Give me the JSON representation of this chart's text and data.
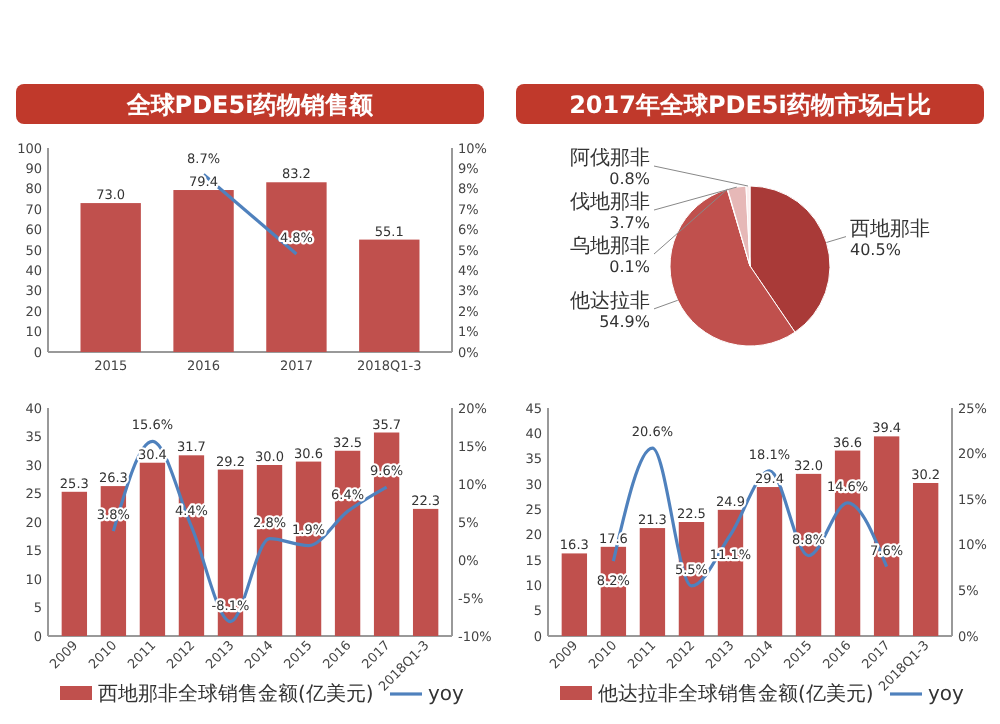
{
  "chart_data": [
    {
      "type": "bar",
      "title": "全球PDE5i药物销售额",
      "categories": [
        "2015",
        "2016",
        "2017",
        "2018Q1-3"
      ],
      "series": [
        {
          "type": "bar",
          "color": "#c0504d",
          "values": [
            73.0,
            79.4,
            83.2,
            55.1
          ],
          "value_labels": [
            "73.0",
            "79.4",
            "83.2",
            "55.1"
          ]
        },
        {
          "type": "line",
          "axis": "y2",
          "color": "#4f81bd",
          "values": [
            null,
            8.7,
            4.8,
            null
          ],
          "value_labels": [
            null,
            "8.7%",
            "4.8%",
            null
          ]
        }
      ],
      "ylim": [
        0,
        100
      ],
      "yticks": [
        0,
        10,
        20,
        30,
        40,
        50,
        60,
        70,
        80,
        90,
        100
      ],
      "y2lim": [
        0,
        10
      ],
      "y2ticks": [
        {
          "value": 0,
          "label": "0%"
        },
        {
          "value": 1,
          "label": "1%"
        },
        {
          "value": 2,
          "label": "2%"
        },
        {
          "value": 3,
          "label": "3%"
        },
        {
          "value": 4,
          "label": "4%"
        },
        {
          "value": 5,
          "label": "5%"
        },
        {
          "value": 6,
          "label": "6%"
        },
        {
          "value": 7,
          "label": "7%"
        },
        {
          "value": 8,
          "label": "8%"
        },
        {
          "value": 9,
          "label": "9%"
        },
        {
          "value": 10,
          "label": "10%"
        }
      ]
    },
    {
      "type": "pie",
      "title": "2017年全球PDE5i药物市场占比",
      "categories": [
        "西地那非",
        "他达拉非",
        "乌地那非",
        "伐地那非",
        "阿伐那非"
      ],
      "values": [
        40.5,
        54.9,
        0.1,
        3.7,
        0.8
      ],
      "value_labels": [
        "40.5%",
        "54.9%",
        "0.1%",
        "3.7%",
        "0.8%"
      ],
      "colors": [
        "#a93a38",
        "#c0504d",
        "#f2dcdb",
        "#e6b8b7",
        "#fbeeee"
      ]
    },
    {
      "type": "bar",
      "categories": [
        "2009",
        "2010",
        "2011",
        "2012",
        "2013",
        "2014",
        "2015",
        "2016",
        "2017",
        "2018Q1-3"
      ],
      "series": [
        {
          "name": "西地那非全球销售金额(亿美元)",
          "type": "bar",
          "color": "#c0504d",
          "values": [
            25.3,
            26.3,
            30.4,
            31.7,
            29.2,
            30.0,
            30.6,
            32.5,
            35.7,
            22.3
          ],
          "value_labels": [
            "25.3",
            "26.3",
            "30.4",
            "31.7",
            "29.2",
            "30.0",
            "30.6",
            "32.5",
            "35.7",
            "22.3"
          ]
        },
        {
          "name": "yoy",
          "type": "line",
          "axis": "y2",
          "color": "#4f81bd",
          "values": [
            null,
            3.8,
            15.6,
            4.4,
            -8.1,
            2.8,
            1.9,
            6.4,
            9.6,
            null
          ],
          "value_labels": [
            null,
            "3.8%",
            "15.6%",
            "4.4%",
            "-8.1%",
            "2.8%",
            "1.9%",
            "6.4%",
            "9.6%",
            null
          ]
        }
      ],
      "ylim": [
        0,
        40
      ],
      "yticks": [
        0,
        5,
        10,
        15,
        20,
        25,
        30,
        35,
        40
      ],
      "y2lim": [
        -10,
        20
      ],
      "y2ticks": [
        {
          "value": -10,
          "label": "-10%"
        },
        {
          "value": -5,
          "label": "-5%"
        },
        {
          "value": 0,
          "label": "0%"
        },
        {
          "value": 5,
          "label": "5%"
        },
        {
          "value": 10,
          "label": "10%"
        },
        {
          "value": 15,
          "label": "15%"
        },
        {
          "value": 20,
          "label": "20%"
        }
      ],
      "legend": "bottom"
    },
    {
      "type": "bar",
      "categories": [
        "2009",
        "2010",
        "2011",
        "2012",
        "2013",
        "2014",
        "2015",
        "2016",
        "2017",
        "2018Q1-3"
      ],
      "series": [
        {
          "name": "他达拉非全球销售金额(亿美元)",
          "type": "bar",
          "color": "#c0504d",
          "values": [
            16.3,
            17.6,
            21.3,
            22.5,
            24.9,
            29.4,
            32.0,
            36.6,
            39.4,
            30.2
          ],
          "value_labels": [
            "16.3",
            "17.6",
            "21.3",
            "22.5",
            "24.9",
            "29.4",
            "32.0",
            "36.6",
            "39.4",
            "30.2"
          ]
        },
        {
          "name": "yoy",
          "type": "line",
          "axis": "y2",
          "color": "#4f81bd",
          "values": [
            null,
            8.2,
            20.6,
            5.5,
            11.1,
            18.1,
            8.8,
            14.6,
            7.6,
            null
          ],
          "value_labels": [
            null,
            "8.2%",
            "20.6%",
            "5.5%",
            "11.1%",
            "18.1%",
            "8.8%",
            "14.6%",
            "7.6%",
            null
          ]
        }
      ],
      "ylim": [
        0,
        45
      ],
      "yticks": [
        0,
        5,
        10,
        15,
        20,
        25,
        30,
        35,
        40,
        45
      ],
      "y2lim": [
        0,
        25
      ],
      "y2ticks": [
        {
          "value": 0,
          "label": "0%"
        },
        {
          "value": 5,
          "label": "5%"
        },
        {
          "value": 10,
          "label": "10%"
        },
        {
          "value": 15,
          "label": "15%"
        },
        {
          "value": 20,
          "label": "20%"
        },
        {
          "value": 25,
          "label": "25%"
        }
      ],
      "legend": "bottom"
    }
  ]
}
